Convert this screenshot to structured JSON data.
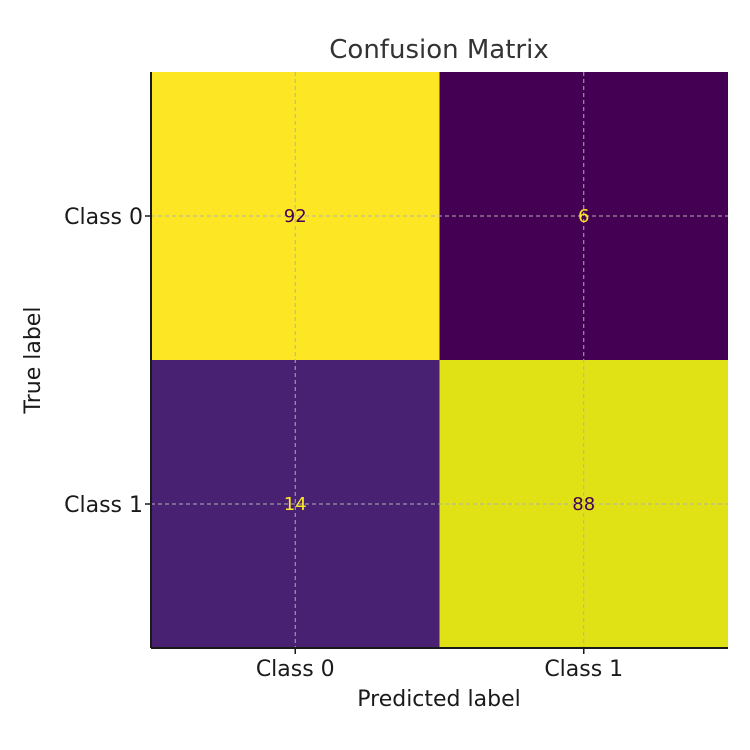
{
  "chart_data": {
    "type": "heatmap",
    "title": "Confusion Matrix",
    "xlabel": "Predicted label",
    "ylabel": "True label",
    "x_categories": [
      "Class 0",
      "Class 1"
    ],
    "y_categories": [
      "Class 0",
      "Class 1"
    ],
    "values": [
      [
        92,
        6
      ],
      [
        14,
        88
      ]
    ],
    "cell_colors": [
      [
        "#fde725",
        "#440154"
      ],
      [
        "#482173",
        "#e1e216"
      ]
    ],
    "value_text_colors": [
      [
        "#440154",
        "#fde725"
      ],
      [
        "#fde725",
        "#440154"
      ]
    ],
    "grid": true
  }
}
